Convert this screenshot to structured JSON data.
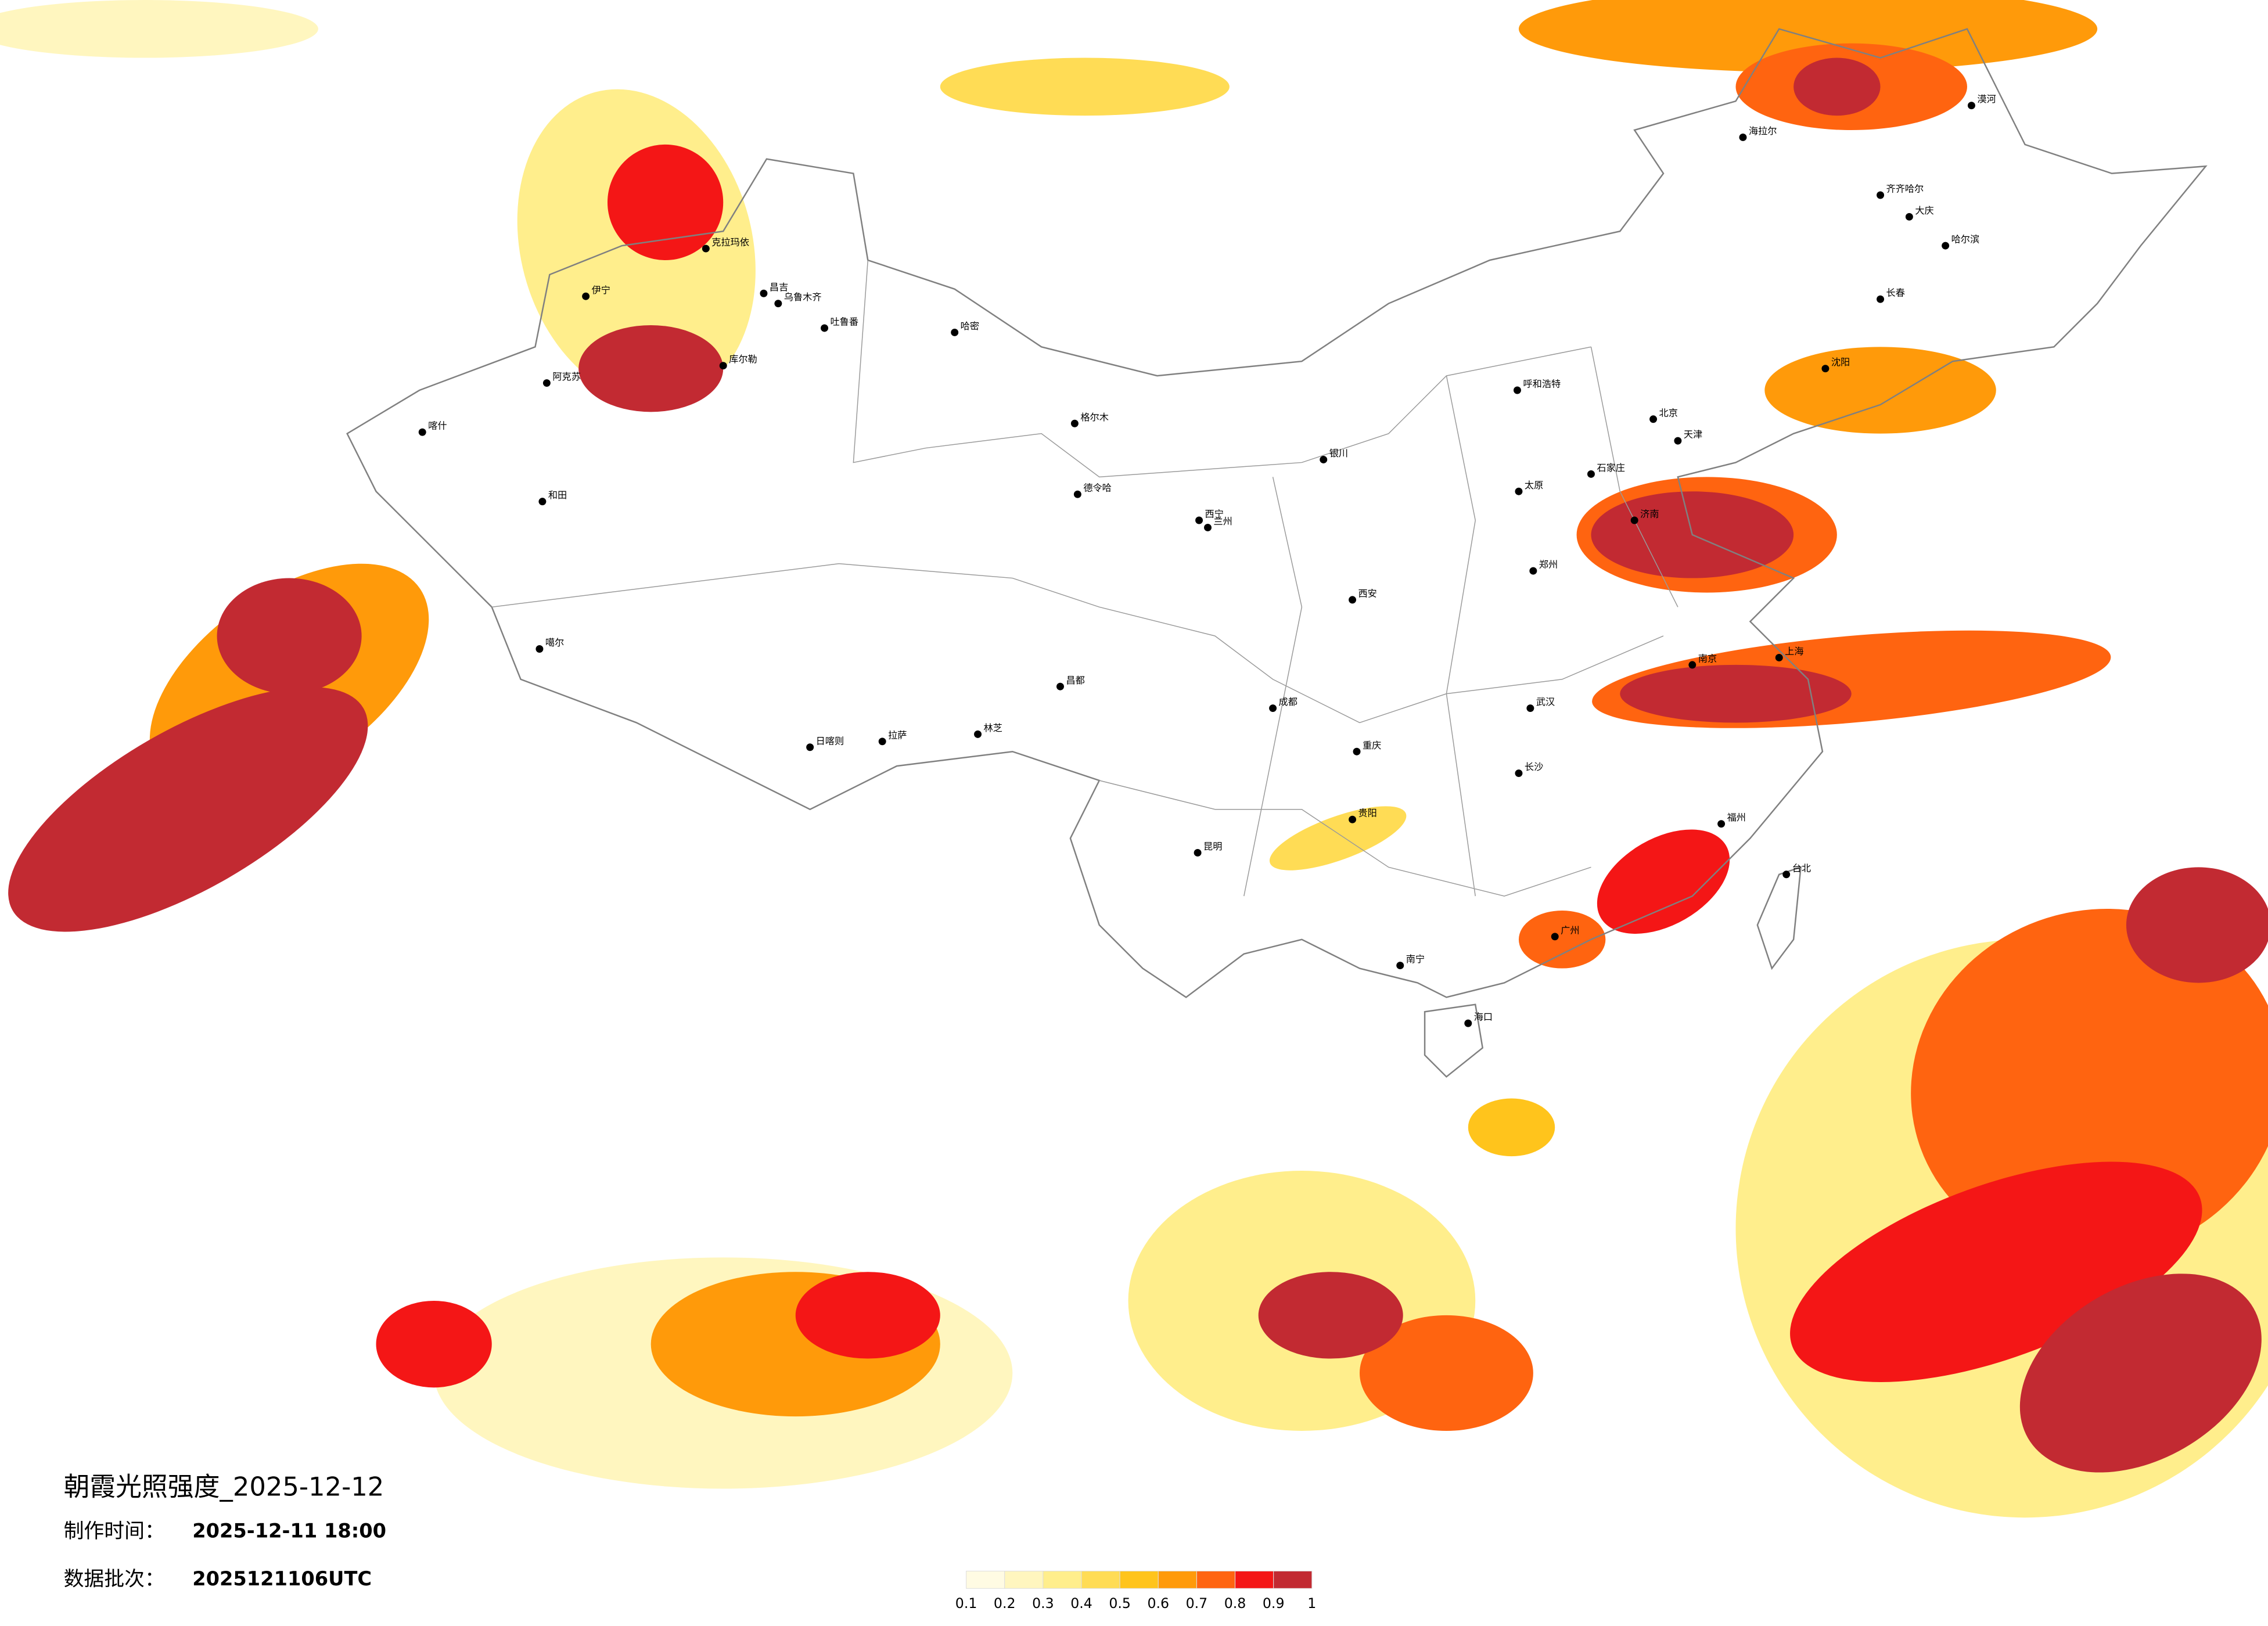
{
  "header": {
    "title": "朝霞光照强度_2025-12-12",
    "made_label": "制作时间：",
    "made_value": "2025-12-11 18:00",
    "batch_label": "数据批次：",
    "batch_value": "2025121106UTC"
  },
  "legend": {
    "ticks": [
      0.1,
      0.2,
      0.3,
      0.4,
      0.5,
      0.6,
      0.7,
      0.8,
      0.9,
      1
    ],
    "colors": [
      "#fffbe3",
      "#fff6bf",
      "#ffee8c",
      "#ffdc55",
      "#ffc41c",
      "#ff9a0a",
      "#ff6410",
      "#f41616",
      "#c22a32"
    ]
  },
  "cities": [
    "克拉玛依",
    "昌吉",
    "乌鲁木齐",
    "吐鲁番",
    "哈密",
    "伊宁",
    "库尔勒",
    "阿克苏",
    "喀什",
    "和田",
    "噶尔",
    "格尔木",
    "德令哈",
    "西宁",
    "兰州",
    "银川",
    "呼和浩特",
    "拉萨",
    "日喀则",
    "林芝",
    "昌都",
    "西安",
    "成都",
    "重庆",
    "贵阳",
    "昆明",
    "南宁",
    "海口",
    "广州",
    "福州",
    "台北",
    "上海",
    "南京",
    "武汉",
    "长沙",
    "北京",
    "天津",
    "济南",
    "郑州",
    "太原",
    "石家庄",
    "沈阳",
    "长春",
    "哈尔滨",
    "大庆",
    "齐齐哈尔",
    "海拉尔",
    "漠河"
  ]
}
